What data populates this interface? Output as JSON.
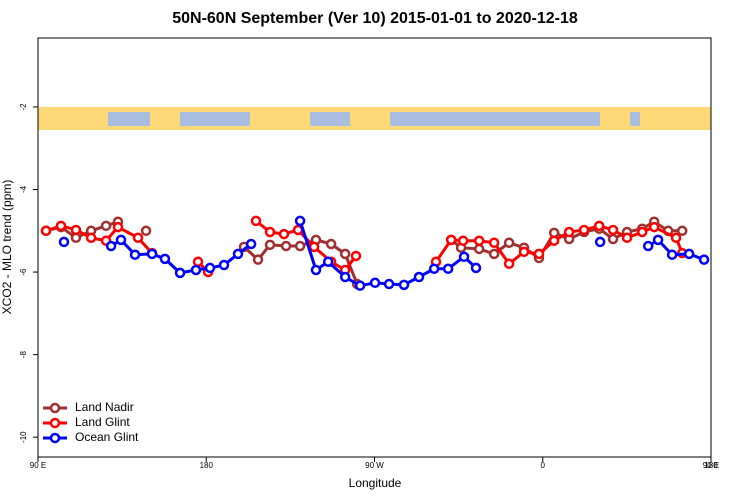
{
  "chart_data": {
    "type": "line",
    "title": "50N-60N September (Ver 10)   2015-01-01 to 2020-12-18",
    "x_label": "Longitude",
    "y_label": "XCO2 - MLO trend (ppm)",
    "xlim": [
      90,
      450
    ],
    "xticks": [
      {
        "value": 90,
        "label": "90 E"
      },
      180,
      {
        "value": 270,
        "label": "90 W"
      },
      {
        "value": 360,
        "label": "0"
      },
      {
        "value": 450,
        "label": "180"
      },
      {
        "value": 450.0001,
        "label": "90 E"
      }
    ],
    "ylim": [
      -10.48,
      -0.33
    ],
    "yticks": [
      -2,
      -4,
      -6,
      -8,
      -10
    ],
    "legend": "bottom-left",
    "series": [
      {
        "name": "Land Nadir",
        "color": "#a03030",
        "x": [
          94.3,
          102.3,
          110.3,
          118.4,
          126.4,
          132.8,
          null,
          147.8,
          null,
          200.2,
          207.7,
          214.1,
          222.7,
          230.2,
          238.7,
          246.8,
          254.3,
          260.7,
          null,
          311,
          316.3,
          326,
          334,
          342,
          350,
          358,
          366.1,
          374.1,
          382.1,
          390.2,
          397.6,
          405.1,
          413.2,
          419.6,
          427.1,
          434.6
        ],
        "values": [
          -5.0,
          -4.91,
          -5.17,
          -5.0,
          -4.88,
          -4.78,
          null,
          -5.0,
          null,
          -5.39,
          -5.7,
          -5.34,
          -5.37,
          -5.37,
          -5.22,
          -5.32,
          -5.56,
          -6.29,
          null,
          -5.22,
          -5.41,
          -5.44,
          -5.56,
          -5.29,
          -5.41,
          -5.66,
          -5.05,
          -5.2,
          -5.03,
          -4.95,
          -5.2,
          -5.03,
          -4.95,
          -4.78,
          -5.0,
          -5.0
        ]
      },
      {
        "name": "Land Glint",
        "color": "#ff0000",
        "x": [
          94.3,
          102.3,
          110.3,
          118.4,
          126.4,
          132.8,
          143.5,
          151,
          null,
          175.6,
          181,
          null,
          206.6,
          214.1,
          221.6,
          229.1,
          237.7,
          246.8,
          254.3,
          260.1,
          null,
          302.9,
          311,
          317.4,
          326,
          334,
          342,
          350,
          358,
          366.1,
          374.1,
          382.1,
          390.2,
          397.6,
          405.1,
          413.2,
          419.6,
          431.3,
          434.6
        ],
        "values": [
          -5.0,
          -4.88,
          -4.98,
          -5.17,
          -5.24,
          -4.91,
          -5.17,
          -5.54,
          null,
          -5.75,
          -6.0,
          null,
          -4.76,
          -5.03,
          -5.08,
          -4.98,
          -5.39,
          -5.75,
          -5.95,
          -5.61,
          null,
          -5.75,
          -5.22,
          -5.24,
          -5.24,
          -5.29,
          -5.8,
          -5.51,
          -5.56,
          -5.24,
          -5.03,
          -4.98,
          -4.88,
          -4.98,
          -5.17,
          -5.03,
          -4.91,
          -5.17,
          -5.54
        ]
      },
      {
        "name": "Ocean Glint",
        "color": "#0000ff",
        "x": [
          103.9,
          null,
          129.1,
          134.4,
          141.9,
          151,
          157.9,
          166,
          174.5,
          182,
          189.5,
          197,
          204,
          null,
          230.2,
          238.7,
          245.2,
          254.3,
          262.3,
          270.3,
          277.8,
          285.8,
          293.8,
          301.9,
          309.4,
          317.9,
          324.3,
          null,
          390.7,
          null,
          416.4,
          421.7,
          429.2,
          438.3,
          446.3
        ],
        "values": [
          -5.27,
          null,
          -5.37,
          -5.22,
          -5.58,
          -5.56,
          -5.68,
          -6.02,
          -5.95,
          -5.9,
          -5.83,
          -5.56,
          -5.32,
          null,
          -4.76,
          -5.95,
          -5.75,
          -6.12,
          -6.33,
          -6.26,
          -6.29,
          -6.31,
          -6.12,
          -5.92,
          -5.92,
          -5.63,
          -5.9,
          null,
          -5.27,
          null,
          -5.37,
          -5.22,
          -5.58,
          -5.56,
          -5.7
        ]
      }
    ]
  }
}
